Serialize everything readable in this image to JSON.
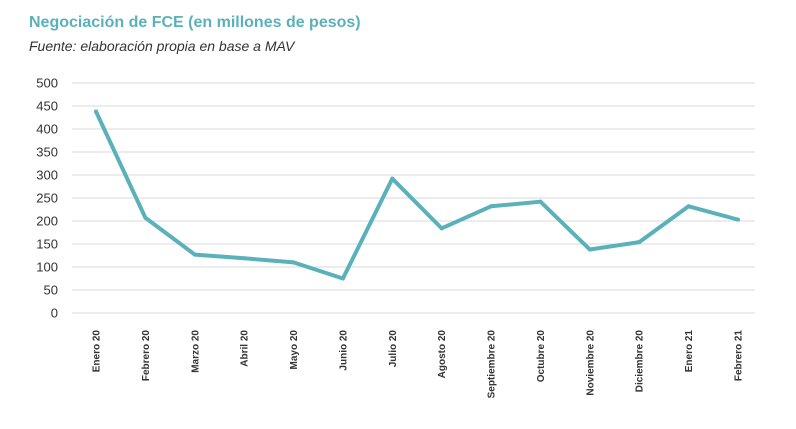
{
  "title": "Negociación de FCE (en millones de pesos)",
  "subtitle": "Fuente: elaboración propia en base a MAV",
  "colors": {
    "title": "#5bb1b9",
    "line": "#5bb1b9",
    "grid": "#d9d9d9",
    "text": "#333333"
  },
  "chart_data": {
    "type": "line",
    "title": "Negociación de FCE (en millones de pesos)",
    "subtitle": "Fuente: elaboración propia en base a MAV",
    "xlabel": "",
    "ylabel": "",
    "categories": [
      "Enero 20",
      "Febrero 20",
      "Marzo 20",
      "Abril 20",
      "Mayo 20",
      "Junio 20",
      "Julio 20",
      "Agosto 20",
      "Septiembre 20",
      "Octubre 20",
      "Noviembre 20",
      "Diciembre 20",
      "Enero 21",
      "Febrero 21"
    ],
    "series": [
      {
        "values": [
          438,
          207,
          127,
          119,
          110,
          75,
          292,
          184,
          232,
          242,
          138,
          154,
          232,
          203
        ]
      }
    ],
    "ylim": [
      0,
      500
    ],
    "yticks": [
      0,
      50,
      100,
      150,
      200,
      250,
      300,
      350,
      400,
      450,
      500
    ],
    "grid": true,
    "legend": "none"
  }
}
